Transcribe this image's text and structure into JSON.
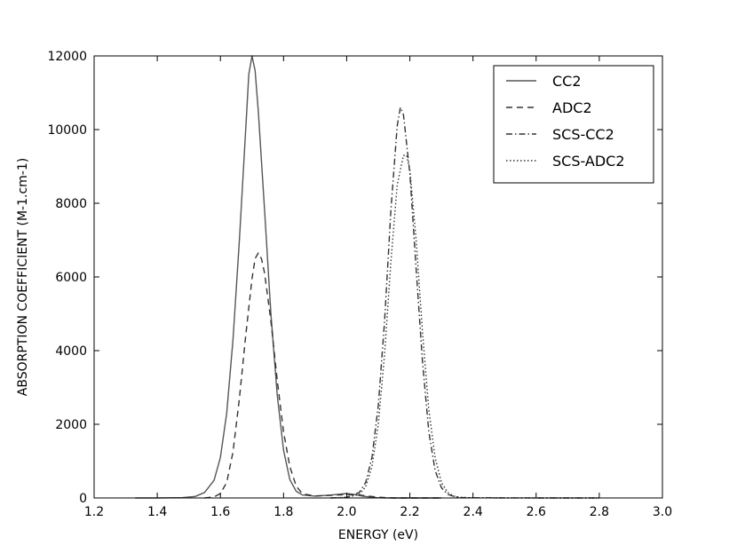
{
  "chart_data": {
    "type": "line",
    "title": "",
    "xlabel": "ENERGY (eV)",
    "ylabel": "ABSORPTION COEFFICIENT (M-1.cm-1)",
    "xlim": [
      1.2,
      3.0
    ],
    "ylim": [
      0,
      12000
    ],
    "x_ticks": [
      "1.2",
      "1.4",
      "1.6",
      "1.8",
      "2.0",
      "2.2",
      "2.4",
      "2.6",
      "2.8",
      "3.0"
    ],
    "y_ticks": [
      "0",
      "2000",
      "4000",
      "6000",
      "8000",
      "10000",
      "12000"
    ],
    "grid": false,
    "legend_position": "top-right",
    "series": [
      {
        "name": "CC2",
        "style": "solid",
        "color": "#555555",
        "x": [
          1.33,
          1.4,
          1.48,
          1.52,
          1.55,
          1.58,
          1.6,
          1.62,
          1.64,
          1.66,
          1.68,
          1.69,
          1.7,
          1.71,
          1.72,
          1.74,
          1.76,
          1.78,
          1.8,
          1.82,
          1.84,
          1.86,
          1.9,
          1.95,
          2.0,
          2.03,
          2.05,
          2.08,
          2.1,
          2.15,
          2.3
        ],
        "y": [
          0,
          0,
          10,
          40,
          150,
          480,
          1100,
          2300,
          4300,
          7000,
          10000,
          11500,
          12000,
          11600,
          10500,
          7800,
          5000,
          2800,
          1300,
          500,
          180,
          80,
          50,
          80,
          120,
          90,
          50,
          20,
          5,
          0,
          0
        ]
      },
      {
        "name": "ADC2",
        "style": "dashed",
        "color": "#333333",
        "x": [
          1.55,
          1.58,
          1.6,
          1.62,
          1.64,
          1.66,
          1.68,
          1.7,
          1.71,
          1.72,
          1.73,
          1.74,
          1.76,
          1.78,
          1.8,
          1.82,
          1.84,
          1.86,
          1.9,
          1.95,
          2.0,
          2.05,
          2.1,
          2.15,
          2.3
        ],
        "y": [
          0,
          30,
          120,
          420,
          1250,
          2700,
          4400,
          5950,
          6500,
          6650,
          6500,
          6100,
          4800,
          3200,
          1800,
          850,
          320,
          110,
          55,
          70,
          95,
          70,
          20,
          0,
          0
        ]
      },
      {
        "name": "SCS-CC2",
        "style": "dashdot",
        "color": "#333333",
        "x": [
          1.95,
          2.0,
          2.04,
          2.06,
          2.08,
          2.1,
          2.12,
          2.14,
          2.16,
          2.17,
          2.18,
          2.2,
          2.22,
          2.24,
          2.26,
          2.28,
          2.3,
          2.32,
          2.34,
          2.36,
          2.4,
          2.6,
          2.8
        ],
        "y": [
          0,
          20,
          150,
          420,
          1100,
          2500,
          4800,
          7800,
          10100,
          10600,
          10400,
          8800,
          6200,
          3700,
          1800,
          750,
          280,
          100,
          40,
          15,
          5,
          0,
          0
        ]
      },
      {
        "name": "SCS-ADC2",
        "style": "dotted",
        "color": "#333333",
        "x": [
          1.95,
          2.0,
          2.04,
          2.06,
          2.08,
          2.1,
          2.12,
          2.14,
          2.16,
          2.18,
          2.19,
          2.2,
          2.22,
          2.24,
          2.26,
          2.28,
          2.3,
          2.32,
          2.34,
          2.36,
          2.4,
          2.6,
          2.8
        ],
        "y": [
          0,
          15,
          100,
          300,
          850,
          2000,
          3900,
          6400,
          8500,
          9300,
          9300,
          8900,
          7000,
          4500,
          2400,
          1100,
          420,
          150,
          50,
          15,
          5,
          0,
          0
        ]
      }
    ]
  }
}
